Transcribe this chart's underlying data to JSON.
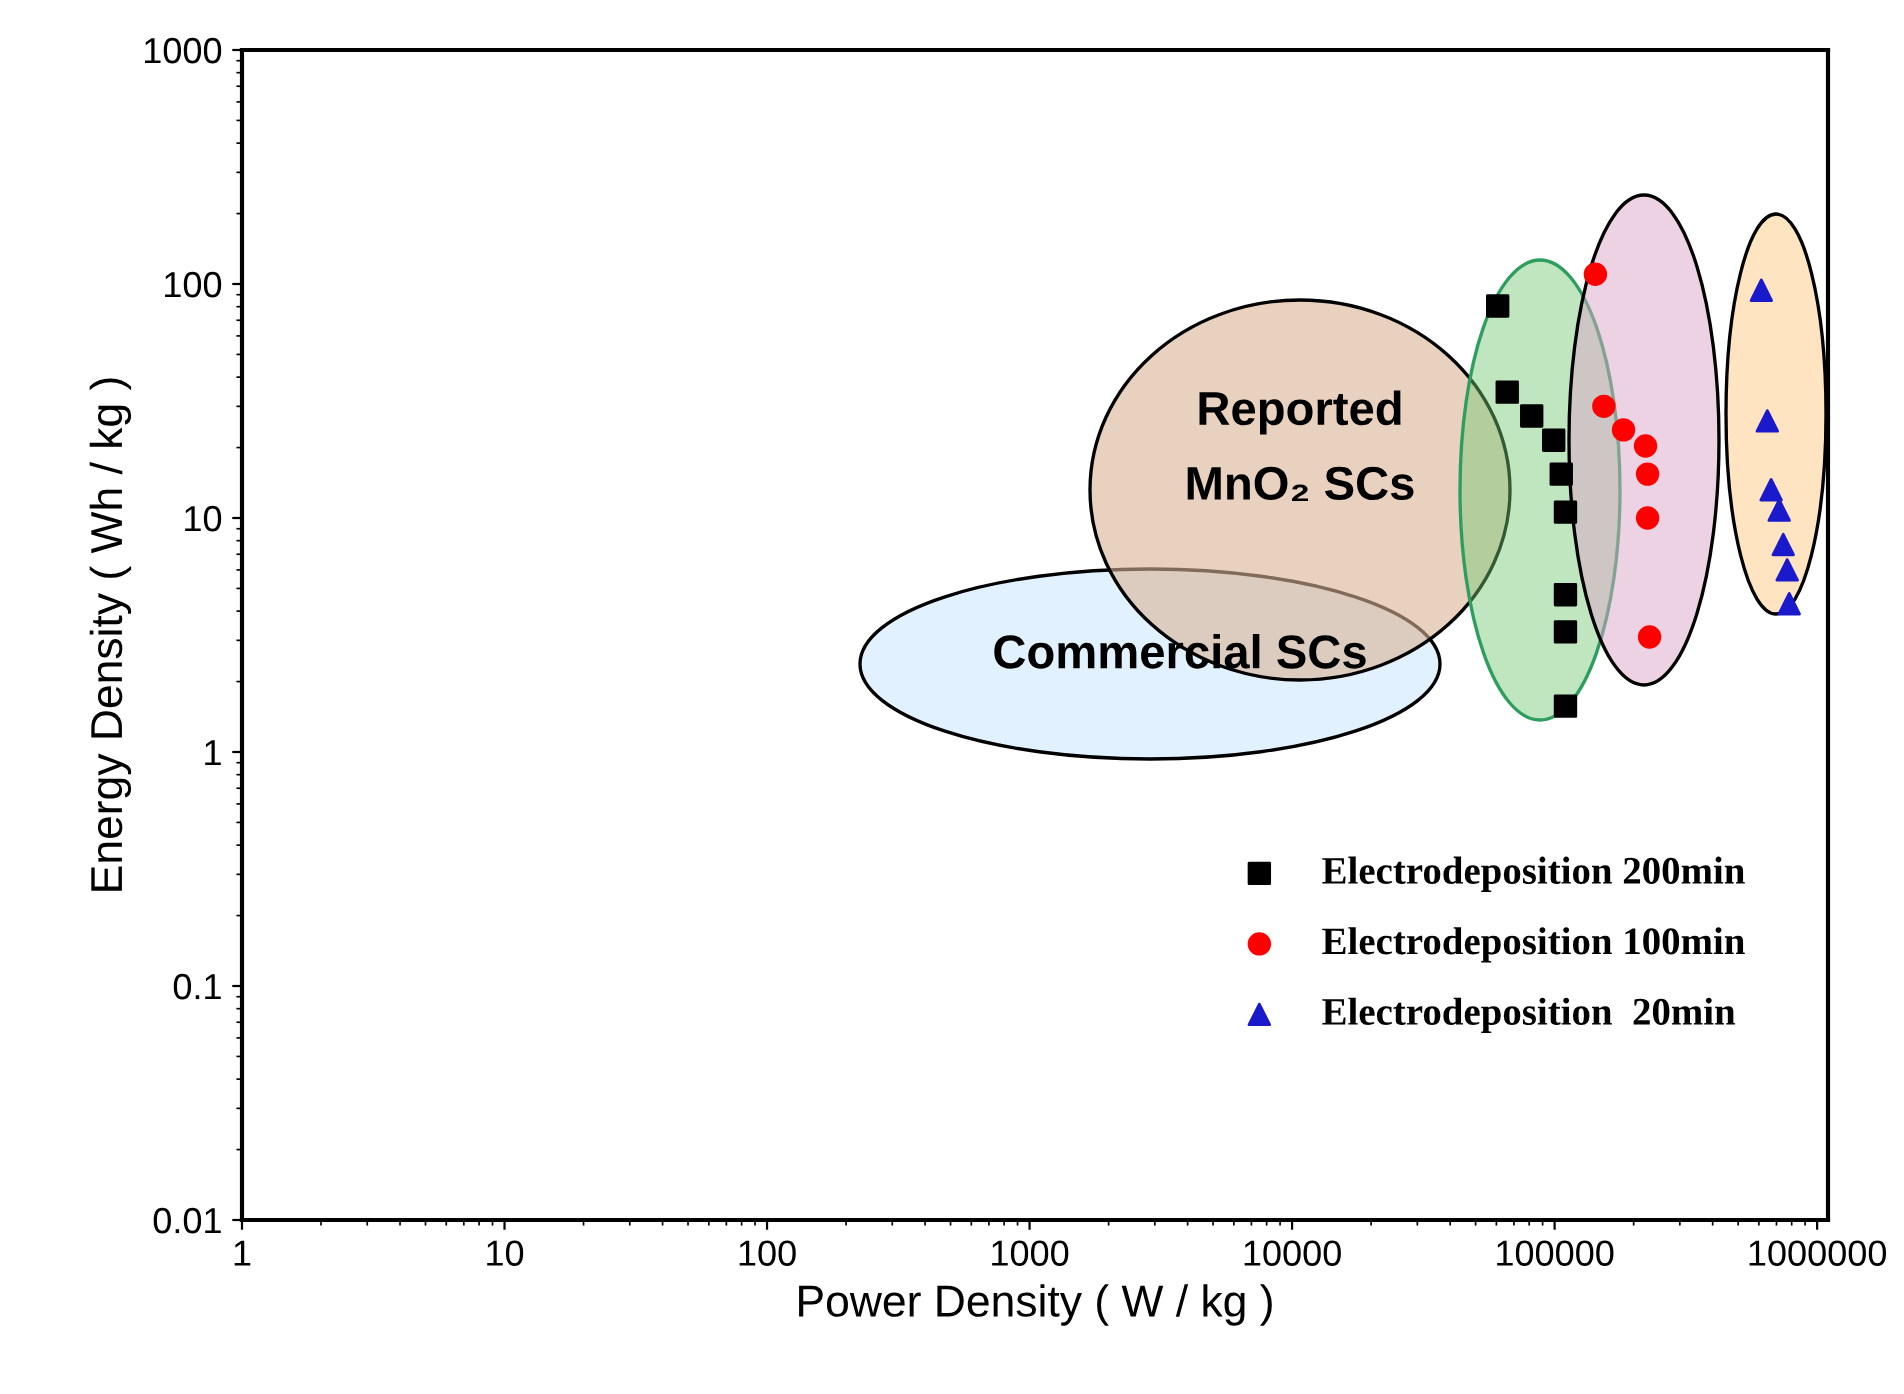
{
  "chart_data": {
    "type": "scatter",
    "xlabel": "Power Density ( W / kg )",
    "ylabel": "Energy Density ( Wh / kg )",
    "log": "xy",
    "xlim": [
      1,
      1100000
    ],
    "ylim": [
      0.01,
      1000
    ],
    "xticks": [
      1,
      10,
      100,
      1000,
      10000,
      100000,
      1000000
    ],
    "yticks": [
      0.01,
      0.1,
      1,
      10,
      100,
      1000
    ],
    "grid": false,
    "legend": "lower right",
    "annotations": [
      "Reported\nMnO₂ SCs",
      "Commercial SCs"
    ],
    "series": [
      {
        "name": "Electrodeposition 200min",
        "color": "#000000",
        "marker": "square",
        "x": [
          60700,
          66000,
          81800,
          99200,
          106000,
          110000,
          110000,
          110000,
          110000
        ],
        "values": [
          80.5,
          34.5,
          27.3,
          21.5,
          15.4,
          10.6,
          4.7,
          3.26,
          1.57
        ]
      },
      {
        "name": "Electrodeposition 100min",
        "color": "#ff0000",
        "marker": "circle",
        "x": [
          143000,
          154000,
          183000,
          222000,
          226000,
          226000,
          230000
        ],
        "values": [
          110,
          30,
          23.8,
          20.3,
          15.4,
          10,
          3.1
        ]
      },
      {
        "name": "Electrodeposition  20min",
        "color": "#1a1acc",
        "marker": "triangle",
        "x": [
          613000,
          646000,
          668000,
          717000,
          743000,
          769000,
          783000
        ],
        "values": [
          94,
          26,
          13.2,
          10.8,
          7.7,
          6.0,
          4.3
        ]
      }
    ]
  }
}
